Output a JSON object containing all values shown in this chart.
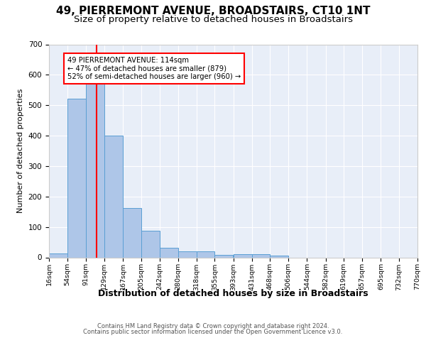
{
  "title": "49, PIERREMONT AVENUE, BROADSTAIRS, CT10 1NT",
  "subtitle": "Size of property relative to detached houses in Broadstairs",
  "xlabel": "Distribution of detached houses by size in Broadstairs",
  "ylabel": "Number of detached properties",
  "footer_line1": "Contains HM Land Registry data © Crown copyright and database right 2024.",
  "footer_line2": "Contains public sector information licensed under the Open Government Licence v3.0.",
  "bar_edges": [
    16,
    54,
    91,
    129,
    167,
    205,
    242,
    280,
    318,
    355,
    393,
    431,
    468,
    506,
    544,
    582,
    619,
    657,
    695,
    732,
    770
  ],
  "bar_heights": [
    13,
    521,
    580,
    401,
    163,
    88,
    32,
    20,
    20,
    8,
    10,
    10,
    5,
    0,
    0,
    0,
    0,
    0,
    0,
    0
  ],
  "bar_color": "#aec6e8",
  "bar_edgecolor": "#5a9fd4",
  "red_line_x": 114,
  "annotation_text": "49 PIERREMONT AVENUE: 114sqm\n← 47% of detached houses are smaller (879)\n52% of semi-detached houses are larger (960) →",
  "ylim": [
    0,
    700
  ],
  "yticks": [
    0,
    100,
    200,
    300,
    400,
    500,
    600,
    700
  ],
  "title_fontsize": 11,
  "subtitle_fontsize": 9.5,
  "xlabel_fontsize": 9,
  "ylabel_fontsize": 8,
  "tick_labels": [
    "16sqm",
    "54sqm",
    "91sqm",
    "129sqm",
    "167sqm",
    "205sqm",
    "242sqm",
    "280sqm",
    "318sqm",
    "355sqm",
    "393sqm",
    "431sqm",
    "468sqm",
    "506sqm",
    "544sqm",
    "582sqm",
    "619sqm",
    "657sqm",
    "695sqm",
    "732sqm",
    "770sqm"
  ],
  "plot_bg_color": "#e8eef8"
}
